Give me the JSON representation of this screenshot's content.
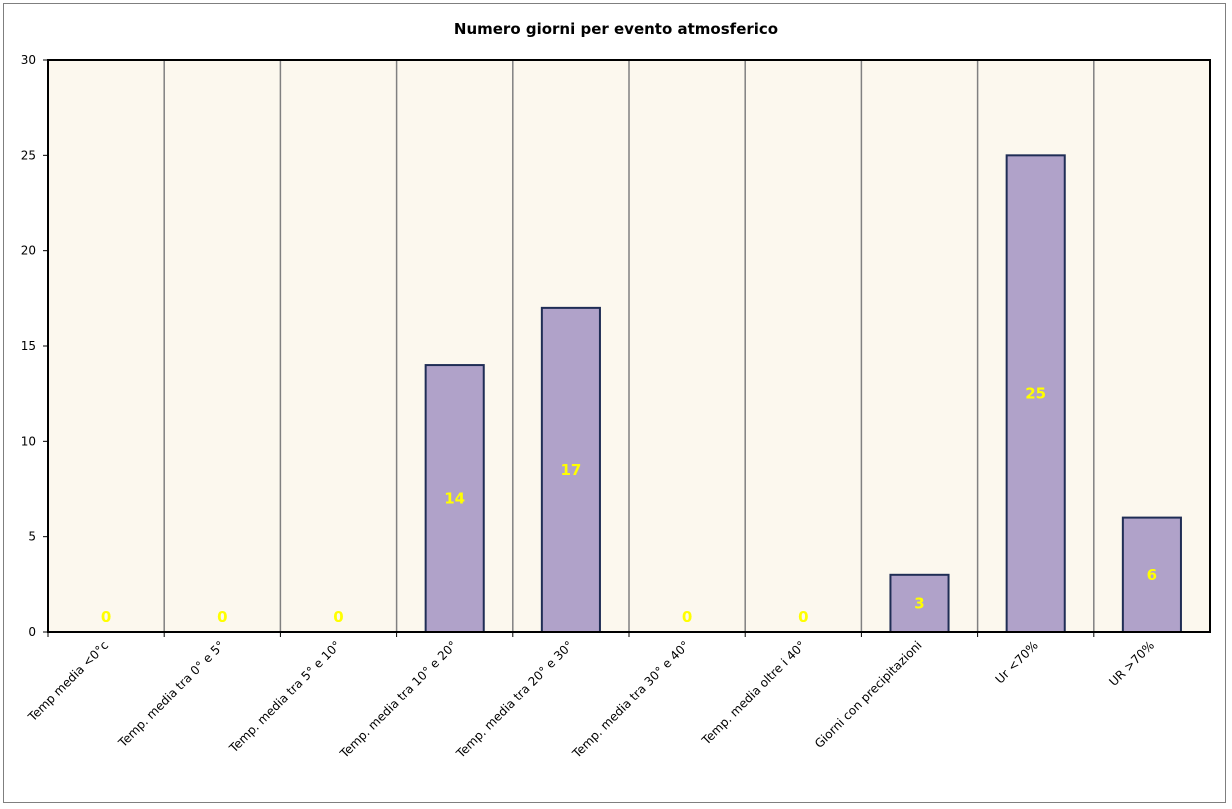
{
  "chart_data": {
    "type": "bar",
    "title": "Numero giorni  per evento atmosferico",
    "xlabel": "",
    "ylabel": "",
    "ylim": [
      0,
      30
    ],
    "yticks": [
      0,
      5,
      10,
      15,
      20,
      25,
      30
    ],
    "categories": [
      "Temp media <0°c",
      "Temp. media tra 0° e 5°",
      "Temp. media tra 5° e 10°",
      "Temp. media tra 10° e 20°",
      "Temp. media tra 20° e 30°",
      "Temp. media tra 30° e 40°",
      "Temp. media oltre i 40°",
      "Giorni con precipitazioni",
      "Ur  <70%",
      "UR >70%"
    ],
    "values": [
      0,
      0,
      0,
      14,
      17,
      0,
      0,
      3,
      25,
      6
    ],
    "grid": "vertical",
    "colors": {
      "plot_background": "#fcf8ee",
      "bar_fill": "#b0a2c9",
      "bar_stroke": "#1f2d55",
      "gridline": "#808080",
      "data_label": "#ffff00"
    }
  }
}
